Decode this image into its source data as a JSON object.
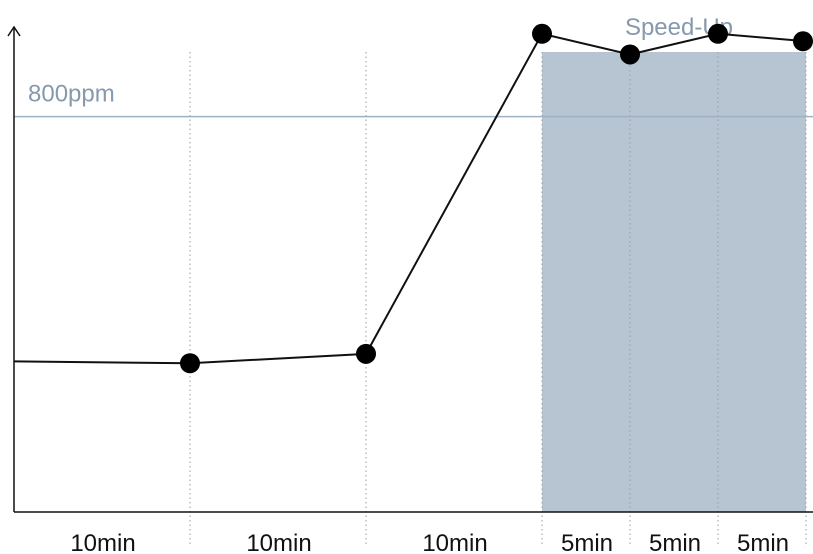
{
  "chart_data": {
    "type": "line",
    "title": "",
    "xlabel": "",
    "ylabel": "",
    "ylim": [
      0,
      1280
    ],
    "grid": "vertical-dotted",
    "x_segments": [
      {
        "label": "10min",
        "minutes": 10
      },
      {
        "label": "10min",
        "minutes": 10
      },
      {
        "label": "10min",
        "minutes": 10
      },
      {
        "label": "5min",
        "minutes": 5
      },
      {
        "label": "5min",
        "minutes": 5
      },
      {
        "label": "5min",
        "minutes": 5
      }
    ],
    "series": [
      {
        "x": [
          0,
          10,
          20,
          30,
          35,
          40,
          45
        ],
        "y": [
          400,
          395,
          420,
          1270,
          1215,
          1270,
          1250
        ],
        "markers": [
          false,
          true,
          true,
          true,
          true,
          true,
          true
        ]
      }
    ],
    "threshold": {
      "value": 1050,
      "label": "800ppm",
      "color": "#9fb2c3"
    },
    "highlight_region": {
      "x_start": 30,
      "x_end": 45,
      "label": "Speed-Up",
      "color": "#b7c5d2",
      "label_color": "#8699ad"
    }
  }
}
